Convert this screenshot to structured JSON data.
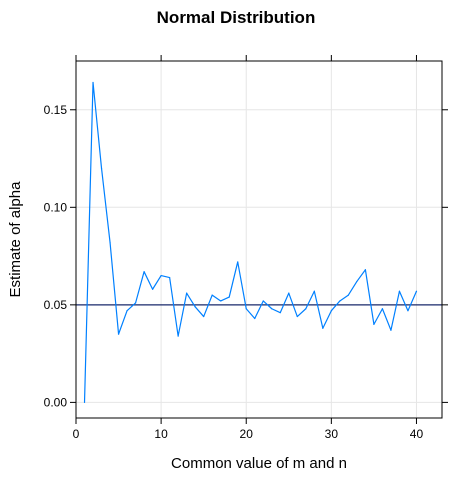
{
  "chart_data": {
    "type": "line",
    "title": "Normal Distribution",
    "xlabel": "Common value of m and n",
    "ylabel": "Estimate of alpha",
    "xlim": [
      0,
      43
    ],
    "ylim": [
      -0.008,
      0.175
    ],
    "x_ticks": [
      0,
      10,
      20,
      30,
      40
    ],
    "x_tick_labels": [
      "0",
      "10",
      "20",
      "30",
      "40"
    ],
    "y_ticks": [
      0.0,
      0.05,
      0.1,
      0.15
    ],
    "y_tick_labels": [
      "0.00",
      "0.05",
      "0.10",
      "0.15"
    ],
    "grid": true,
    "series": [
      {
        "color": "#0080ff",
        "x": [
          1,
          2,
          3,
          4,
          5,
          6,
          7,
          8,
          9,
          10,
          11,
          12,
          13,
          14,
          15,
          16,
          17,
          18,
          19,
          20,
          21,
          22,
          23,
          24,
          25,
          26,
          27,
          28,
          29,
          30,
          31,
          32,
          33,
          34,
          35,
          36,
          37,
          38,
          39,
          40
        ],
        "values": [
          0.0,
          0.164,
          0.12,
          0.082,
          0.035,
          0.047,
          0.051,
          0.067,
          0.058,
          0.065,
          0.064,
          0.034,
          0.056,
          0.049,
          0.044,
          0.055,
          0.052,
          0.054,
          0.072,
          0.048,
          0.043,
          0.052,
          0.048,
          0.046,
          0.056,
          0.044,
          0.048,
          0.057,
          0.038,
          0.047,
          0.052,
          0.055,
          0.062,
          0.068,
          0.04,
          0.048,
          0.037,
          0.057,
          0.047,
          0.057
        ]
      }
    ],
    "reference_lines": [
      {
        "orientation": "horizontal",
        "value": 0.05,
        "color": "#1a2a6c"
      }
    ]
  }
}
